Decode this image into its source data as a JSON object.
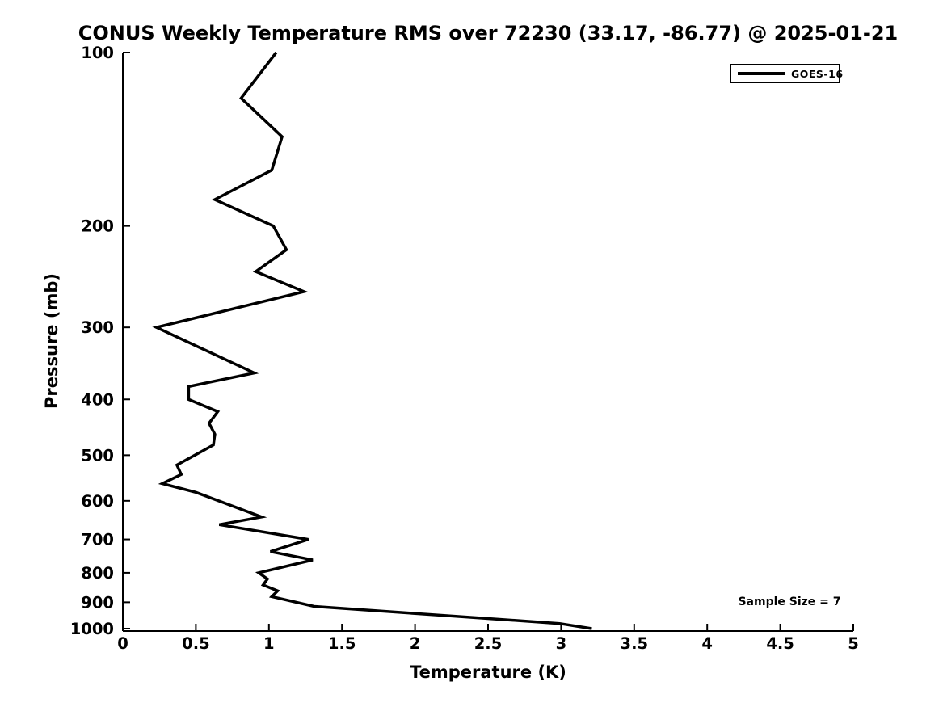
{
  "title": "CONUS Weekly Temperature RMS over 72230 (33.17, -86.77) @ 2025-01-21",
  "annotations": {
    "sample_size": "Sample Size = 7"
  },
  "legend": {
    "position": "top-right",
    "entries": [
      {
        "label": "GOES-16",
        "color": "#000000",
        "line_style": "solid"
      }
    ]
  },
  "colors": {
    "background": "#ffffff",
    "axis": "#000000",
    "text": "#000000",
    "line": "#000000"
  },
  "chart_data": {
    "type": "line",
    "title": "CONUS Weekly Temperature RMS over 72230 (33.17, -86.77) @ 2025-01-21",
    "xlabel": "Temperature (K)",
    "ylabel": "Pressure (mb)",
    "xlim": [
      0,
      5
    ],
    "xticks": [
      0,
      0.5,
      1,
      1.5,
      2,
      2.5,
      3,
      3.5,
      4,
      4.5,
      5
    ],
    "yscale": "log",
    "y_inverted": true,
    "ylim": [
      100,
      1000
    ],
    "yticks": [
      100,
      200,
      300,
      400,
      500,
      600,
      700,
      800,
      900,
      1000
    ],
    "grid": false,
    "legend_position": "top-right",
    "series": [
      {
        "name": "GOES-16",
        "color": "#000000",
        "points": [
          {
            "temperature_k": 1.05,
            "pressure_mb": 100
          },
          {
            "temperature_k": 0.81,
            "pressure_mb": 120
          },
          {
            "temperature_k": 1.09,
            "pressure_mb": 140
          },
          {
            "temperature_k": 1.02,
            "pressure_mb": 160
          },
          {
            "temperature_k": 0.63,
            "pressure_mb": 180
          },
          {
            "temperature_k": 1.03,
            "pressure_mb": 200
          },
          {
            "temperature_k": 1.12,
            "pressure_mb": 220
          },
          {
            "temperature_k": 0.91,
            "pressure_mb": 240
          },
          {
            "temperature_k": 1.24,
            "pressure_mb": 260
          },
          {
            "temperature_k": 0.23,
            "pressure_mb": 300
          },
          {
            "temperature_k": 0.9,
            "pressure_mb": 360
          },
          {
            "temperature_k": 0.45,
            "pressure_mb": 380
          },
          {
            "temperature_k": 0.45,
            "pressure_mb": 400
          },
          {
            "temperature_k": 0.65,
            "pressure_mb": 420
          },
          {
            "temperature_k": 0.59,
            "pressure_mb": 440
          },
          {
            "temperature_k": 0.63,
            "pressure_mb": 460
          },
          {
            "temperature_k": 0.62,
            "pressure_mb": 480
          },
          {
            "temperature_k": 0.37,
            "pressure_mb": 520
          },
          {
            "temperature_k": 0.4,
            "pressure_mb": 540
          },
          {
            "temperature_k": 0.27,
            "pressure_mb": 560
          },
          {
            "temperature_k": 0.5,
            "pressure_mb": 580
          },
          {
            "temperature_k": 0.95,
            "pressure_mb": 640
          },
          {
            "temperature_k": 0.66,
            "pressure_mb": 660
          },
          {
            "temperature_k": 1.27,
            "pressure_mb": 700
          },
          {
            "temperature_k": 1.01,
            "pressure_mb": 735
          },
          {
            "temperature_k": 1.3,
            "pressure_mb": 760
          },
          {
            "temperature_k": 0.93,
            "pressure_mb": 800
          },
          {
            "temperature_k": 0.99,
            "pressure_mb": 820
          },
          {
            "temperature_k": 0.96,
            "pressure_mb": 840
          },
          {
            "temperature_k": 1.06,
            "pressure_mb": 860
          },
          {
            "temperature_k": 1.02,
            "pressure_mb": 880
          },
          {
            "temperature_k": 1.31,
            "pressure_mb": 915
          },
          {
            "temperature_k": 2.99,
            "pressure_mb": 980
          },
          {
            "temperature_k": 3.21,
            "pressure_mb": 1000
          }
        ]
      }
    ],
    "text_annotations": [
      {
        "text": "Sample Size = 7",
        "temperature_k": 4.56,
        "pressure_mb": 900
      }
    ]
  }
}
